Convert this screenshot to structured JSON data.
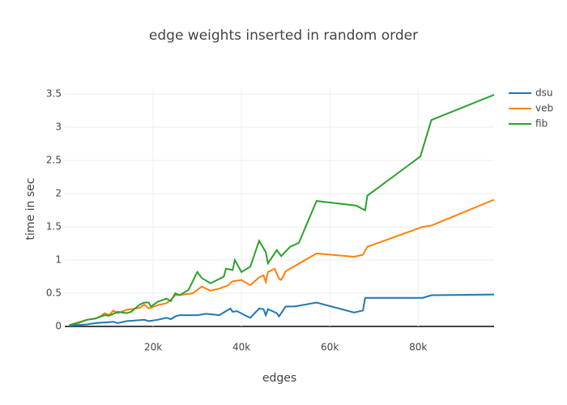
{
  "chart_data": {
    "type": "line",
    "title": "edge weights inserted in random order",
    "x_label": "edges",
    "y_label": "time in sec",
    "xlim": [
      0,
      97200
    ],
    "ylim": [
      0,
      3.6
    ],
    "xticks": [
      {
        "value": 20000,
        "label": "20k"
      },
      {
        "value": 40000,
        "label": "40k"
      },
      {
        "value": 60000,
        "label": "60k"
      },
      {
        "value": 80000,
        "label": "80k"
      }
    ],
    "yticks": [
      0,
      0.5,
      1,
      1.5,
      2,
      2.5,
      3,
      3.5
    ],
    "grid": true,
    "legend": "right",
    "series": [
      {
        "name": "dsu",
        "color": "#1f77b4",
        "x": [
          1000,
          5000,
          7000,
          9000,
          11000,
          12000,
          14000,
          16000,
          18000,
          19000,
          21000,
          23000,
          24000,
          25000,
          26000,
          30000,
          32000,
          35000,
          36000,
          37500,
          38000,
          39000,
          41000,
          42000,
          44000,
          45000,
          45500,
          46000,
          47000,
          48000,
          48500,
          50000,
          52000,
          57000,
          65500,
          67500,
          68000,
          81000,
          83000,
          97200
        ],
        "values": [
          0.01,
          0.03,
          0.05,
          0.06,
          0.07,
          0.05,
          0.08,
          0.09,
          0.1,
          0.08,
          0.1,
          0.13,
          0.11,
          0.15,
          0.17,
          0.17,
          0.19,
          0.17,
          0.21,
          0.27,
          0.22,
          0.23,
          0.16,
          0.13,
          0.27,
          0.26,
          0.17,
          0.26,
          0.23,
          0.2,
          0.15,
          0.3,
          0.3,
          0.36,
          0.21,
          0.24,
          0.43,
          0.43,
          0.47,
          0.48
        ]
      },
      {
        "name": "veb",
        "color": "#ff7f0e",
        "x": [
          1000,
          3000,
          5000,
          7000,
          8000,
          9000,
          10000,
          11000,
          12000,
          14000,
          16000,
          17000,
          18000,
          19000,
          21000,
          23000,
          24000,
          25000,
          27000,
          29000,
          31000,
          33000,
          35000,
          37000,
          38000,
          39000,
          40000,
          42000,
          44000,
          45000,
          45500,
          46000,
          47500,
          48500,
          49000,
          50000,
          57000,
          65500,
          67500,
          68500,
          81000,
          83000,
          97200
        ],
        "values": [
          0.02,
          0.06,
          0.1,
          0.12,
          0.15,
          0.2,
          0.17,
          0.24,
          0.2,
          0.25,
          0.27,
          0.28,
          0.33,
          0.27,
          0.32,
          0.35,
          0.4,
          0.47,
          0.48,
          0.5,
          0.6,
          0.54,
          0.57,
          0.62,
          0.68,
          0.69,
          0.7,
          0.62,
          0.74,
          0.77,
          0.67,
          0.82,
          0.87,
          0.72,
          0.7,
          0.83,
          1.1,
          1.05,
          1.08,
          1.2,
          1.5,
          1.52,
          1.91
        ]
      },
      {
        "name": "fib",
        "color": "#2ca02c",
        "x": [
          1000,
          3000,
          5000,
          7000,
          9000,
          10000,
          12000,
          14000,
          15000,
          17000,
          18000,
          19000,
          19500,
          21000,
          23000,
          24000,
          25000,
          26000,
          28000,
          30000,
          31000,
          33000,
          36000,
          36500,
          38000,
          38500,
          40000,
          42000,
          44000,
          45500,
          46000,
          48000,
          49000,
          51000,
          53000,
          57000,
          66000,
          68000,
          68500,
          80500,
          83000,
          97200
        ],
        "values": [
          0.02,
          0.05,
          0.1,
          0.12,
          0.17,
          0.16,
          0.22,
          0.2,
          0.22,
          0.33,
          0.36,
          0.36,
          0.3,
          0.37,
          0.42,
          0.38,
          0.5,
          0.47,
          0.55,
          0.82,
          0.73,
          0.65,
          0.75,
          0.87,
          0.85,
          1.0,
          0.82,
          0.9,
          1.29,
          1.12,
          0.95,
          1.15,
          1.06,
          1.2,
          1.26,
          1.89,
          1.82,
          1.75,
          1.97,
          2.56,
          3.11,
          3.49
        ]
      }
    ]
  }
}
